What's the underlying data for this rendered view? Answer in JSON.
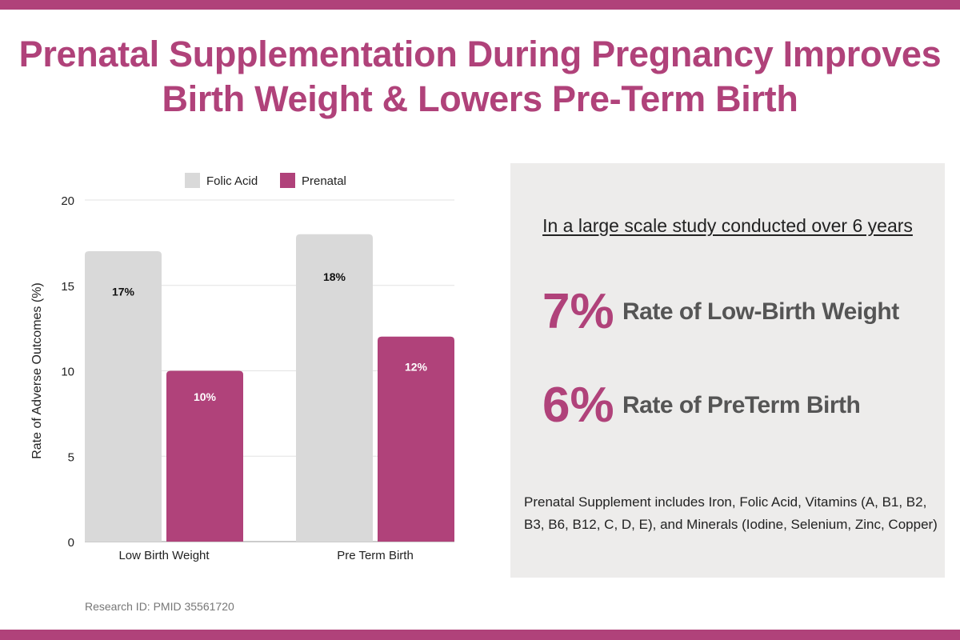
{
  "title": "Prenatal Supplementation During Pregnancy Improves Birth Weight & Lowers Pre-Term Birth",
  "colors": {
    "accent": "#b0427a",
    "folic": "#d9d9d9",
    "panel": "#edeceb"
  },
  "chart_data": {
    "type": "bar",
    "categories": [
      "Low Birth Weight",
      "Pre Term Birth"
    ],
    "series": [
      {
        "name": "Folic Acid",
        "values": [
          17,
          18
        ],
        "labels": [
          "17%",
          "18%"
        ],
        "color": "#d9d9d9"
      },
      {
        "name": "Prenatal",
        "values": [
          10,
          12
        ],
        "labels": [
          "10%",
          "12%"
        ],
        "color": "#b0427a"
      }
    ],
    "ylabel": "Rate of Adverse Outcomes (%)",
    "xlabel": "",
    "ylim": [
      0,
      20
    ],
    "yticks": [
      0,
      5,
      10,
      15,
      20
    ],
    "grid": true,
    "legend": "top"
  },
  "panel": {
    "study": "In a large scale study conducted over 6 years",
    "stats": [
      {
        "value": "7%",
        "label": "Rate of Low-Birth Weight"
      },
      {
        "value": "6%",
        "label": "Rate of PreTerm Birth"
      }
    ],
    "note": "Prenatal Supplement includes Iron, Folic Acid, Vitamins (A, B1, B2, B3, B6, B12, C, D, E), and Minerals (Iodine, Selenium, Zinc, Copper)"
  },
  "research": "Research ID: PMID 35561720"
}
